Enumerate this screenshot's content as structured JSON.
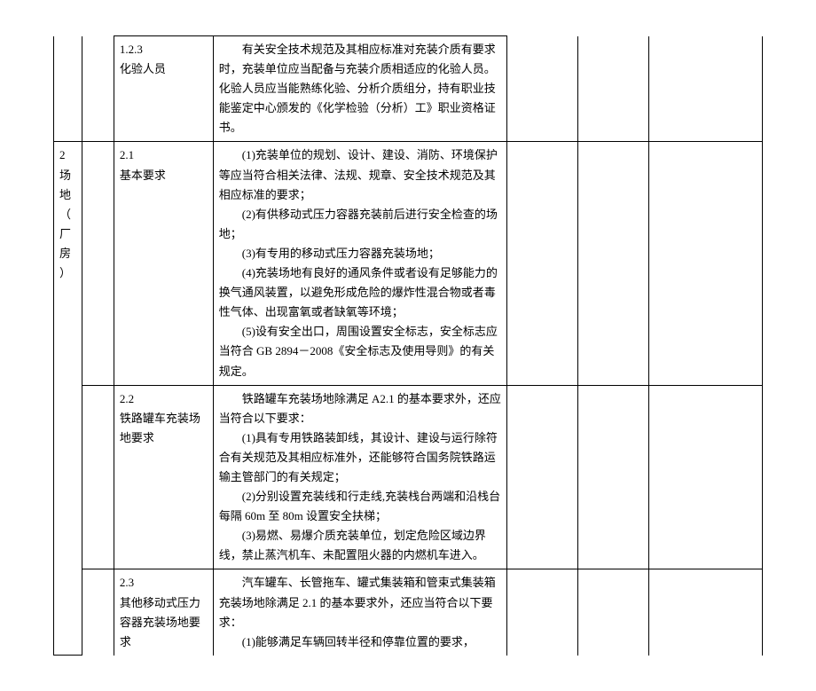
{
  "rows": [
    {
      "idx": "",
      "sub": "",
      "title": "1.2.3\n化验人员",
      "content": "　　有关安全技术规范及其相应标准对充装介质有要求时，充装单位应当配备与充装介质相适应的化验人员。化验人员应当能熟练化验、分析介质组分，持有职业技能鉴定中心颁发的《化学检验（分析）工》职业资格证书。",
      "idx_open_top": true,
      "sub_open_top": true
    },
    {
      "idx": "2\n场\n地\n（厂\n房）",
      "sub": "",
      "title": "2.1\n基本要求",
      "content": "　　(1)充装单位的规划、设计、建设、消防、环境保护等应当符合相关法律、法规、规章、安全技术规范及其相应标准的要求；\n　　(2)有供移动式压力容器充装前后进行安全检查的场地；\n　　(3)有专用的移动式压力容器充装场地；\n　　(4)充装场地有良好的通风条件或者设有足够能力的换气通风装置，以避免形成危险的爆炸性混合物或者毒性气体、出现富氧或者缺氧等环境；\n　　(5)设有安全出口，周围设置安全标志，安全标志应当符合 GB 2894－2008《安全标志及使用导则》的有关规定。",
      "idx_rowspan": 3
    },
    {
      "sub": "",
      "title": "2.2\n铁路罐车充装场地要求",
      "content": "　　铁路罐车充装场地除满足 A2.1 的基本要求外，还应当符合以下要求：\n　　(1)具有专用铁路装卸线，其设计、建设与运行除符合有关规范及其相应标准外，还能够符合国务院铁路运输主管部门的有关规定；\n　　(2)分别设置充装线和行走线,充装栈台两端和沿栈台每隔 60m 至 80m 设置安全扶梯；\n　　(3)易燃、易爆介质充装单位，划定危险区域边界线，禁止蒸汽机车、未配置阻火器的内燃机车进入。"
    },
    {
      "sub": "",
      "title": "2.3\n其他移动式压力容器充装场地要求",
      "content": "　　汽车罐车、长管拖车、罐式集装箱和管束式集装箱充装场地除满足 2.1 的基本要求外，还应当符合以下要求：\n　　(1)能够满足车辆回转半径和停靠位置的要求，",
      "idx_open_bottom": true,
      "title_open_bottom": true,
      "content_open_bottom": true,
      "blank_open_bottom": true
    }
  ]
}
